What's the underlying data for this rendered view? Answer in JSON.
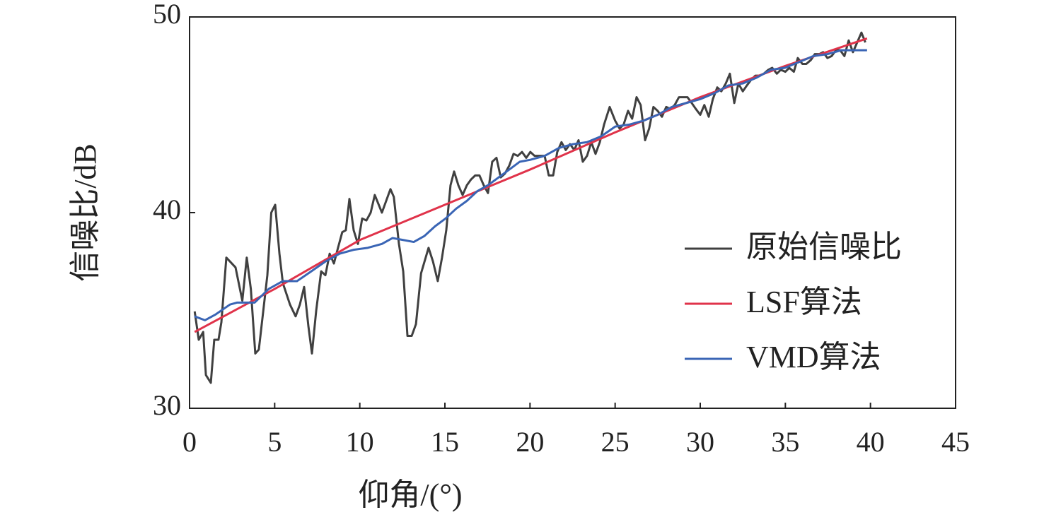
{
  "chart_data": {
    "type": "line",
    "xlabel": "仰角/(°)",
    "ylabel": "信噪比/dB",
    "xlim": [
      0,
      45
    ],
    "xticks": [
      0,
      5,
      10,
      15,
      20,
      25,
      30,
      35,
      40,
      45
    ],
    "ylim": [
      30,
      50
    ],
    "yticks": [
      30,
      40,
      50
    ],
    "grid": false,
    "series": [
      {
        "name": "原始信噪比",
        "color": "#404040",
        "x": [
          0.3,
          0.54,
          0.8,
          0.96,
          1.25,
          1.45,
          1.7,
          1.87,
          2.16,
          2.7,
          3.1,
          3.36,
          3.6,
          3.86,
          4.07,
          4.57,
          4.8,
          5.03,
          5.28,
          5.48,
          5.9,
          6.23,
          6.48,
          6.73,
          6.98,
          7.19,
          7.44,
          7.73,
          7.98,
          8.23,
          8.48,
          8.72,
          8.97,
          9.18,
          9.39,
          9.64,
          9.89,
          10.14,
          10.39,
          10.64,
          10.88,
          11.3,
          11.8,
          12.0,
          12.3,
          12.55,
          12.8,
          13.05,
          13.3,
          13.6,
          14.04,
          14.3,
          14.58,
          14.83,
          15.08,
          15.33,
          15.54,
          15.79,
          16.04,
          16.29,
          16.54,
          16.78,
          17.03,
          17.28,
          17.53,
          17.78,
          18.03,
          18.28,
          18.53,
          18.78,
          19.03,
          19.28,
          19.53,
          19.78,
          20.02,
          20.27,
          20.86,
          21.1,
          21.36,
          21.6,
          21.85,
          22.1,
          22.35,
          22.6,
          22.85,
          23.1,
          23.35,
          23.6,
          23.85,
          24.1,
          24.35,
          24.68,
          25.0,
          25.26,
          25.5,
          25.76,
          26.0,
          26.26,
          26.5,
          26.76,
          27.0,
          27.25,
          27.5,
          27.75,
          28.0,
          28.25,
          28.5,
          28.75,
          29.0,
          29.25,
          29.5,
          29.74,
          30.0,
          30.24,
          30.5,
          30.74,
          31.0,
          31.24,
          31.5,
          31.74,
          32.0,
          32.24,
          32.5,
          32.74,
          33.0,
          33.24,
          33.5,
          33.73,
          34.0,
          34.23,
          34.5,
          34.73,
          35.0,
          35.23,
          35.5,
          35.73,
          36.0,
          36.23,
          36.5,
          36.73,
          37.0,
          37.22,
          37.47,
          37.72,
          37.97,
          38.22,
          38.47,
          38.72,
          38.97,
          39.22,
          39.47,
          39.7
        ],
        "values": [
          34.95,
          33.5,
          33.9,
          31.7,
          31.3,
          33.5,
          33.5,
          34.4,
          37.7,
          37.2,
          35.5,
          37.7,
          36.1,
          32.8,
          33,
          36.8,
          40.0,
          40.4,
          37.9,
          36.4,
          35.3,
          34.7,
          35.3,
          36.2,
          34.2,
          32.8,
          35.0,
          37.0,
          36.8,
          37.9,
          37.4,
          38.2,
          39.0,
          39.1,
          40.7,
          39.1,
          38.4,
          39.7,
          39.6,
          40.0,
          40.9,
          40.0,
          41.2,
          40.8,
          38.4,
          37.0,
          33.7,
          33.7,
          34.3,
          36.9,
          38.2,
          37.5,
          36.5,
          37.7,
          39.1,
          41.4,
          42.1,
          41.4,
          40.9,
          41.4,
          41.7,
          41.9,
          41.9,
          41.4,
          41.0,
          42.6,
          42.8,
          41.8,
          42.0,
          42.4,
          43.0,
          42.9,
          43.1,
          42.8,
          43.1,
          42.9,
          42.9,
          41.9,
          41.9,
          43.1,
          43.6,
          43.2,
          43.5,
          43.2,
          43.7,
          42.6,
          42.9,
          43.6,
          43.0,
          43.6,
          44.5,
          45.4,
          44.7,
          44.3,
          44.5,
          45.2,
          44.8,
          45.9,
          45.5,
          43.7,
          44.3,
          45.4,
          45.2,
          44.9,
          45.4,
          45.3,
          45.5,
          45.9,
          45.9,
          45.9,
          45.6,
          45.3,
          45.0,
          45.5,
          44.9,
          45.8,
          46.4,
          46.2,
          46.6,
          47.1,
          45.6,
          46.6,
          46.2,
          46.5,
          46.8,
          47.0,
          47.0,
          47.1,
          47.3,
          47.4,
          47.1,
          47.3,
          47.2,
          47.4,
          47.2,
          47.9,
          47.6,
          47.6,
          47.8,
          48.1,
          48.1,
          48.2,
          47.9,
          48.0,
          48.3,
          48.3,
          48.0,
          48.8,
          48.2,
          48.7,
          49.2,
          48.7
        ]
      },
      {
        "name": "LSF算法",
        "color": "#e0334a",
        "x": [
          0.3,
          5,
          10,
          15,
          20,
          25,
          30,
          35,
          39.8
        ],
        "values": [
          33.9,
          36.1,
          38.6,
          40.4,
          42.2,
          44.1,
          45.9,
          47.5,
          48.9
        ]
      },
      {
        "name": "VMD算法",
        "color": "#3a65b5",
        "x": [
          0.29,
          0.91,
          1.54,
          2.37,
          2.78,
          3.82,
          4.65,
          5.48,
          6.31,
          7.15,
          7.98,
          8.81,
          9.64,
          10.47,
          11.3,
          11.92,
          12.55,
          13.17,
          13.79,
          14.42,
          15.04,
          15.66,
          16.29,
          16.91,
          17.53,
          18.16,
          18.78,
          19.4,
          20.02,
          20.86,
          21.69,
          22.52,
          23.35,
          24.18,
          25.01,
          25.84,
          26.67,
          27.5,
          28.33,
          29.17,
          30.0,
          30.83,
          31.66,
          32.49,
          33.32,
          34.15,
          34.98,
          35.81,
          36.64,
          37.47,
          38.3,
          39.14,
          39.8
        ],
        "values": [
          34.7,
          34.5,
          34.8,
          35.3,
          35.4,
          35.4,
          36.1,
          36.5,
          36.5,
          37.0,
          37.5,
          37.9,
          38.1,
          38.2,
          38.4,
          38.7,
          38.6,
          38.5,
          38.8,
          39.3,
          39.7,
          40.2,
          40.6,
          41.1,
          41.4,
          41.8,
          42.2,
          42.6,
          42.7,
          42.9,
          43.3,
          43.5,
          43.6,
          43.9,
          44.4,
          44.5,
          44.7,
          45.0,
          45.4,
          45.6,
          45.8,
          46.1,
          46.5,
          46.6,
          46.9,
          47.3,
          47.4,
          47.7,
          48.0,
          48.1,
          48.3,
          48.3,
          48.3
        ]
      }
    ]
  }
}
